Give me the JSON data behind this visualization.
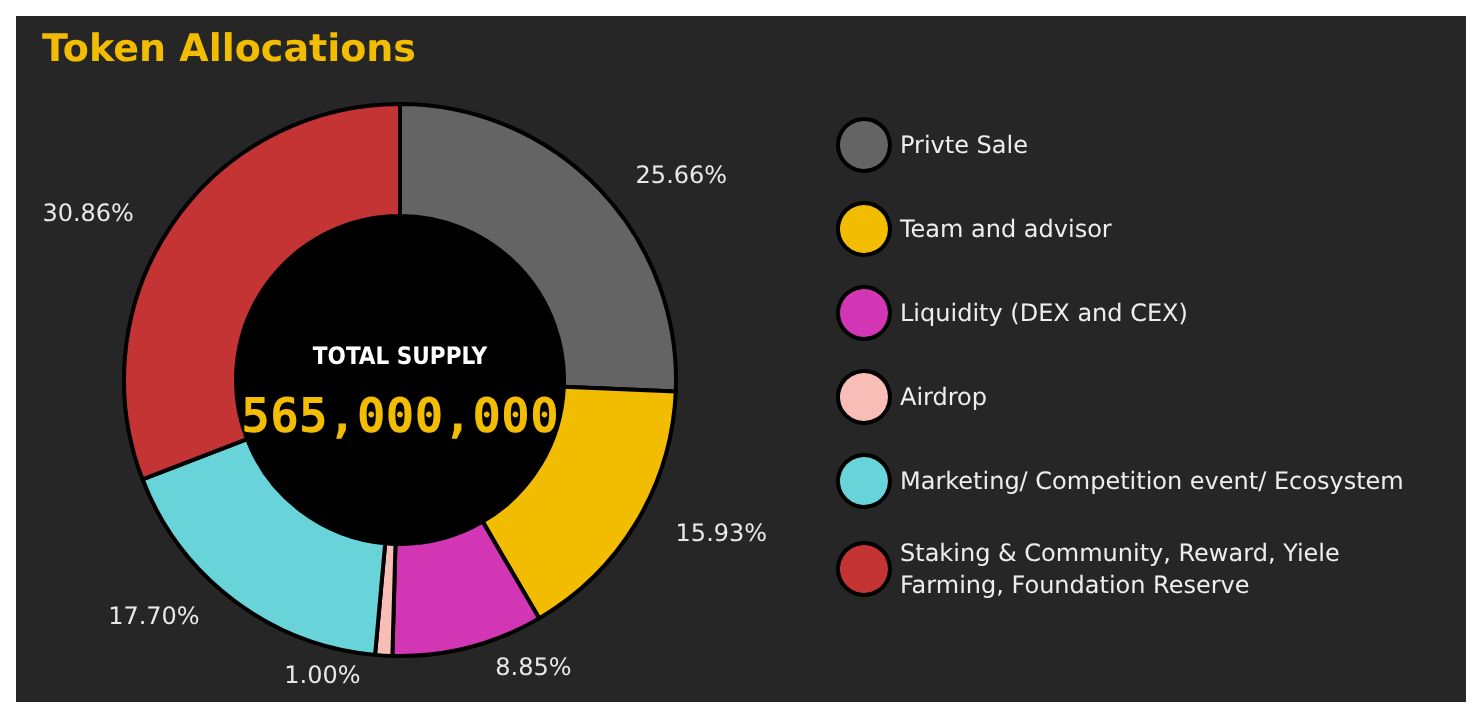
{
  "chart_data": {
    "type": "donut",
    "title": "Token Allocations",
    "categories": [
      "Privte Sale",
      "Team and advisor",
      "Liquidity (DEX and CEX)",
      "Airdrop",
      "Marketing/ Competition event/ Ecosystem",
      "Staking & Community, Reward, Yiele Farming, Foundation Reserve"
    ],
    "values": [
      25.66,
      15.93,
      8.85,
      1.0,
      17.7,
      30.86
    ],
    "colors": [
      "#646464",
      "#f2bd00",
      "#d236b4",
      "#f8bdb6",
      "#68d3d9",
      "#c43434"
    ],
    "value_labels": [
      "25.66%",
      "15.93%",
      "8.85%",
      "1.00%",
      "17.70%",
      "30.86%"
    ],
    "legend": "right",
    "annotations": [
      "TOTAL SUPPLY",
      "565,000,000"
    ]
  }
}
